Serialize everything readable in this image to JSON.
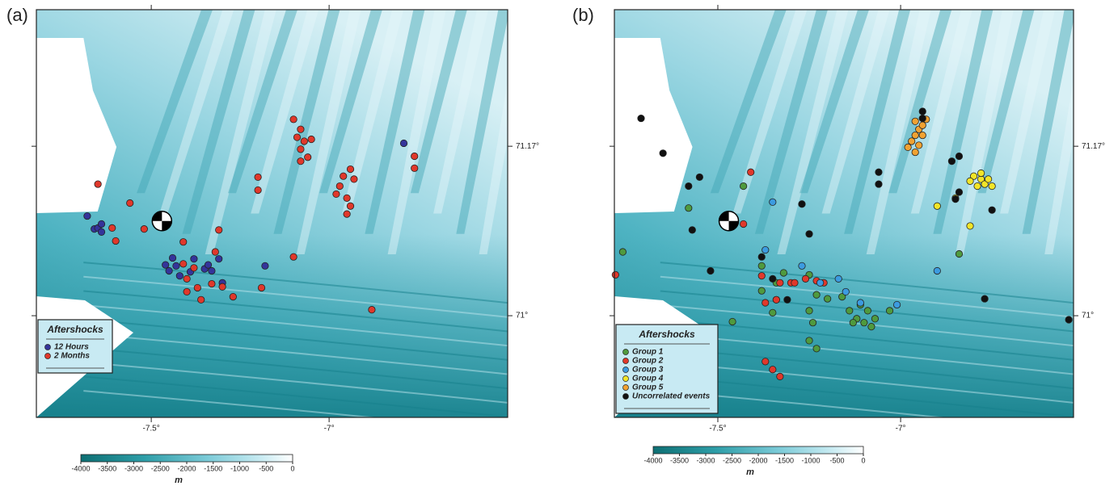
{
  "panels": [
    {
      "label": "(a)",
      "xlim": [
        -7.823,
        -6.498
      ],
      "ylim": [
        70.898,
        71.307
      ],
      "xticks": [
        {
          "value": -7.5,
          "label": "-7.5°"
        },
        {
          "value": -7,
          "label": "-7°"
        }
      ],
      "yticks": [
        {
          "value": 71.17,
          "label": "71.17°"
        },
        {
          "value": 71,
          "label": "71°"
        }
      ],
      "legend": {
        "title": "Aftershocks",
        "position": "lower-left"
      },
      "groups": [
        {
          "name": "12 Hours",
          "color": "#34349a",
          "lon": [
            -7.68,
            -7.66,
            -7.65,
            -7.64,
            -7.64,
            -7.46,
            -7.45,
            -7.43,
            -7.42,
            -7.44,
            -7.38,
            -7.35,
            -7.34,
            -7.31,
            -7.3,
            -7.18,
            -6.79,
            -7.39,
            -7.33
          ],
          "lat": [
            71.1,
            71.087,
            71.088,
            71.092,
            71.084,
            71.051,
            71.045,
            71.05,
            71.04,
            71.058,
            71.057,
            71.047,
            71.051,
            71.057,
            71.033,
            71.05,
            71.173,
            71.044,
            71.045
          ]
        },
        {
          "name": "2 Months",
          "color": "#e0382b",
          "lon": [
            -7.65,
            -7.56,
            -7.61,
            -7.6,
            -7.52,
            -7.41,
            -7.31,
            -7.41,
            -7.4,
            -7.38,
            -7.37,
            -7.4,
            -7.36,
            -7.33,
            -7.3,
            -7.27,
            -7.32,
            -7.19,
            -7.1,
            -6.88,
            -7.2,
            -7.2,
            -7.1,
            -7.08,
            -7.07,
            -7.08,
            -7.06,
            -7.09,
            -7.08,
            -7.05,
            -6.97,
            -6.96,
            -6.94,
            -6.93,
            -6.95,
            -6.94,
            -6.95,
            -6.98,
            -6.76,
            -6.76
          ],
          "lat": [
            71.132,
            71.113,
            71.088,
            71.075,
            71.087,
            71.074,
            71.086,
            71.052,
            71.037,
            71.048,
            71.028,
            71.024,
            71.016,
            71.032,
            71.029,
            71.019,
            71.064,
            71.028,
            71.059,
            71.006,
            71.139,
            71.126,
            71.197,
            71.187,
            71.175,
            71.167,
            71.159,
            71.179,
            71.155,
            71.177,
            71.13,
            71.14,
            71.147,
            71.137,
            71.118,
            71.11,
            71.102,
            71.122,
            71.16,
            71.148
          ]
        }
      ],
      "colorbar": {
        "unit": "m",
        "lim": [
          -4000,
          0
        ],
        "ticks": [
          -4000,
          -3500,
          -3000,
          -2500,
          -2000,
          -1500,
          -1000,
          -500,
          0
        ]
      }
    },
    {
      "label": "(b)",
      "xlim": [
        -7.783,
        -6.527
      ],
      "ylim": [
        70.898,
        71.307
      ],
      "xticks": [
        {
          "value": -7.5,
          "label": "-7.5°"
        },
        {
          "value": -7,
          "label": "-7°"
        }
      ],
      "yticks": [
        {
          "value": 71.17,
          "label": "71.17°"
        },
        {
          "value": 71,
          "label": "71°"
        }
      ],
      "legend": {
        "title": "Aftershocks",
        "position": "lower-left"
      },
      "groups": [
        {
          "name": "Group 1",
          "color": "#4f9a3e",
          "lon": [
            -7.58,
            -7.43,
            -7.76,
            -7.38,
            -7.34,
            -7.38,
            -7.32,
            -7.25,
            -7.23,
            -7.2,
            -7.16,
            -7.14,
            -7.12,
            -7.1,
            -7.08,
            -7.09,
            -7.11,
            -7.13,
            -7.07,
            -7.03,
            -7.25,
            -7.24,
            -7.25,
            -7.23,
            -7.46,
            -7.35,
            -6.84,
            -7.34
          ],
          "lat": [
            71.108,
            71.13,
            71.064,
            71.05,
            71.033,
            71.025,
            71.043,
            71.041,
            71.021,
            71.017,
            71.019,
            71.005,
            70.997,
            70.993,
            70.989,
            71.005,
            71.011,
            70.993,
            70.997,
            71.005,
            71.005,
            70.993,
            70.975,
            70.967,
            70.994,
            71.003,
            71.062,
            71.016
          ]
        },
        {
          "name": "Group 2",
          "color": "#e0382b",
          "lon": [
            -7.41,
            -7.43,
            -7.78,
            -7.38,
            -7.33,
            -7.3,
            -7.29,
            -7.26,
            -7.23,
            -7.21,
            -7.37,
            -7.34,
            -7.37,
            -7.35,
            -7.33
          ],
          "lat": [
            71.144,
            71.092,
            71.041,
            71.04,
            71.033,
            71.033,
            71.033,
            71.037,
            71.035,
            71.033,
            71.013,
            71.016,
            70.954,
            70.946,
            70.939
          ]
        },
        {
          "name": "Group 3",
          "color": "#3c9be0",
          "lon": [
            -7.35,
            -7.37,
            -7.27,
            -7.22,
            -7.15,
            -7.11,
            -7.01,
            -6.9,
            -7.17
          ],
          "lat": [
            71.114,
            71.066,
            71.05,
            71.033,
            71.024,
            71.013,
            71.011,
            71.045,
            71.037
          ]
        },
        {
          "name": "Group 4",
          "color": "#f2e528",
          "lon": [
            -6.8,
            -6.78,
            -6.77,
            -6.76,
            -6.79,
            -6.81,
            -6.78,
            -6.75,
            -6.85,
            -6.9,
            -6.81
          ],
          "lat": [
            71.14,
            71.137,
            71.132,
            71.137,
            71.13,
            71.135,
            71.143,
            71.13,
            71.118,
            71.11,
            71.09
          ]
        },
        {
          "name": "Group 5",
          "color": "#f0a232",
          "lon": [
            -6.96,
            -6.95,
            -6.94,
            -6.97,
            -6.95,
            -6.96,
            -6.98,
            -6.94,
            -6.93,
            -6.96
          ],
          "lat": [
            71.195,
            71.187,
            71.181,
            71.175,
            71.171,
            71.164,
            71.169,
            71.191,
            71.197,
            71.181
          ]
        },
        {
          "name": "Uncorrelated events",
          "color": "#111111",
          "lon": [
            -7.71,
            -7.65,
            -7.55,
            -7.58,
            -7.57,
            -7.52,
            -7.38,
            -7.27,
            -7.25,
            -7.06,
            -7.06,
            -6.94,
            -6.86,
            -6.84,
            -6.84,
            -6.85,
            -6.75,
            -6.77,
            -6.54,
            -6.94,
            -7.35,
            -7.31
          ],
          "lat": [
            71.198,
            71.163,
            71.139,
            71.13,
            71.086,
            71.045,
            71.059,
            71.112,
            71.082,
            71.144,
            71.132,
            71.198,
            71.155,
            71.16,
            71.124,
            71.117,
            71.106,
            71.017,
            70.996,
            71.205,
            71.037,
            71.016
          ]
        }
      ],
      "colorbar": {
        "unit": "m",
        "lim": [
          -4000,
          0
        ],
        "ticks": [
          -4000,
          -3500,
          -3000,
          -2500,
          -2000,
          -1500,
          -1000,
          -500,
          0
        ]
      }
    }
  ]
}
